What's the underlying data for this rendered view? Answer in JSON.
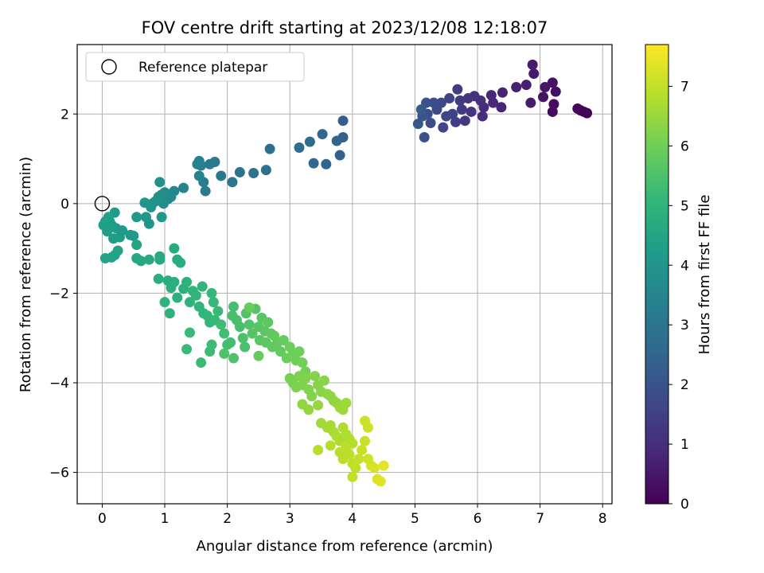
{
  "chart_data": {
    "type": "scatter",
    "title": "FOV centre drift starting at 2023/12/08 12:18:07",
    "xlabel": "Angular distance from reference (arcmin)",
    "ylabel": "Rotation from reference (arcmin)",
    "xlim": [
      -0.4,
      8.15
    ],
    "ylim": [
      -6.7,
      3.55
    ],
    "xticks": [
      0,
      1,
      2,
      3,
      4,
      5,
      6,
      7,
      8
    ],
    "yticks": [
      -6,
      -4,
      -2,
      0,
      2
    ],
    "xtick_labels": [
      "0",
      "1",
      "2",
      "3",
      "4",
      "5",
      "6",
      "7",
      "8"
    ],
    "ytick_labels": [
      "−6",
      "−4",
      "−2",
      "0",
      "2"
    ],
    "grid": true,
    "legend": {
      "placement": "top-left",
      "entries": [
        "Reference platepar"
      ]
    },
    "reference_point": {
      "name": "Reference platepar",
      "x": 0,
      "y": 0,
      "marker": "open-circle"
    },
    "colorbar": {
      "label": "Hours from first FF file",
      "range": [
        0,
        7.7
      ],
      "ticks": [
        0,
        1,
        2,
        3,
        4,
        5,
        6,
        7
      ],
      "tick_labels": [
        "0",
        "1",
        "2",
        "3",
        "4",
        "5",
        "6",
        "7"
      ],
      "colormap": "viridis"
    },
    "colormap_stops": [
      "#440154",
      "#482878",
      "#3e4989",
      "#31688e",
      "#26828e",
      "#1f9e89",
      "#35b779",
      "#6ece58",
      "#b5de2b",
      "#fde725"
    ],
    "points": [
      [
        7.75,
        2.02,
        0.02
      ],
      [
        7.7,
        2.05,
        0.05
      ],
      [
        7.65,
        2.08,
        0.08
      ],
      [
        7.6,
        2.12,
        0.12
      ],
      [
        7.2,
        2.05,
        0.2
      ],
      [
        7.22,
        2.22,
        0.25
      ],
      [
        7.25,
        2.5,
        0.3
      ],
      [
        7.2,
        2.7,
        0.35
      ],
      [
        7.05,
        2.38,
        0.4
      ],
      [
        7.08,
        2.6,
        0.45
      ],
      [
        6.9,
        2.9,
        0.5
      ],
      [
        6.88,
        3.1,
        0.55
      ],
      [
        6.85,
        2.25,
        0.6
      ],
      [
        6.78,
        2.65,
        0.65
      ],
      [
        6.62,
        2.6,
        0.7
      ],
      [
        6.4,
        2.48,
        0.75
      ],
      [
        6.38,
        2.15,
        0.8
      ],
      [
        6.22,
        2.42,
        0.85
      ],
      [
        6.25,
        2.25,
        0.9
      ],
      [
        6.1,
        2.15,
        0.95
      ],
      [
        6.08,
        1.95,
        1.0
      ],
      [
        6.05,
        2.3,
        1.05
      ],
      [
        5.95,
        2.4,
        1.1
      ],
      [
        5.9,
        2.05,
        1.15
      ],
      [
        5.85,
        2.35,
        1.2
      ],
      [
        5.8,
        1.85,
        1.25
      ],
      [
        5.75,
        2.1,
        1.3
      ],
      [
        5.72,
        2.3,
        1.35
      ],
      [
        5.68,
        2.55,
        1.4
      ],
      [
        5.65,
        1.82,
        1.45
      ],
      [
        5.6,
        2.0,
        1.5
      ],
      [
        5.55,
        2.35,
        1.55
      ],
      [
        5.5,
        1.95,
        1.6
      ],
      [
        5.45,
        1.7,
        1.65
      ],
      [
        5.42,
        2.25,
        1.7
      ],
      [
        5.35,
        2.1,
        1.75
      ],
      [
        5.3,
        2.25,
        1.8
      ],
      [
        5.25,
        1.8,
        1.85
      ],
      [
        5.2,
        2.0,
        1.9
      ],
      [
        5.18,
        2.25,
        1.95
      ],
      [
        5.15,
        1.48,
        2.0
      ],
      [
        5.12,
        1.95,
        2.05
      ],
      [
        5.05,
        1.78,
        2.1
      ],
      [
        5.1,
        2.1,
        2.15
      ],
      [
        3.85,
        1.85,
        2.3
      ],
      [
        3.85,
        1.48,
        2.35
      ],
      [
        3.8,
        1.08,
        2.4
      ],
      [
        3.75,
        1.4,
        2.45
      ],
      [
        3.58,
        0.88,
        2.5
      ],
      [
        3.52,
        1.55,
        2.55
      ],
      [
        3.38,
        0.9,
        2.6
      ],
      [
        3.32,
        1.38,
        2.65
      ],
      [
        3.15,
        1.25,
        2.7
      ],
      [
        2.68,
        1.22,
        2.8
      ],
      [
        2.62,
        0.75,
        2.85
      ],
      [
        2.42,
        0.68,
        2.9
      ],
      [
        2.2,
        0.7,
        2.95
      ],
      [
        2.08,
        0.48,
        3.0
      ],
      [
        1.9,
        0.62,
        3.05
      ],
      [
        1.8,
        0.93,
        3.1
      ],
      [
        1.72,
        0.88,
        3.15
      ],
      [
        1.65,
        0.28,
        3.2
      ],
      [
        1.62,
        0.48,
        3.25
      ],
      [
        1.58,
        0.85,
        3.3
      ],
      [
        1.55,
        0.95,
        3.35
      ],
      [
        1.52,
        0.88,
        3.4
      ],
      [
        1.55,
        0.62,
        3.45
      ],
      [
        1.3,
        0.35,
        3.5
      ],
      [
        1.15,
        0.28,
        3.55
      ],
      [
        1.1,
        0.15,
        3.6
      ],
      [
        1.05,
        0.1,
        3.65
      ],
      [
        1.0,
        0.25,
        3.7
      ],
      [
        0.98,
        0.0,
        3.75
      ],
      [
        0.95,
        0.2,
        3.8
      ],
      [
        0.92,
        0.48,
        3.85
      ],
      [
        0.9,
        0.15,
        3.88
      ],
      [
        0.85,
        0.05,
        3.92
      ],
      [
        0.8,
        0.0,
        3.95
      ],
      [
        0.78,
        -0.08,
        3.98
      ],
      [
        0.75,
        -0.45,
        4.0
      ],
      [
        0.7,
        -0.3,
        4.02
      ],
      [
        0.68,
        0.02,
        4.05
      ],
      [
        0.55,
        -0.3,
        4.08
      ],
      [
        0.95,
        -0.3,
        4.1
      ],
      [
        0.5,
        -0.72,
        4.12
      ],
      [
        0.45,
        -0.7,
        4.14
      ],
      [
        0.32,
        -0.6,
        4.16
      ],
      [
        0.28,
        -0.75,
        4.18
      ],
      [
        0.22,
        -0.55,
        4.2
      ],
      [
        0.2,
        -0.2,
        4.22
      ],
      [
        0.18,
        -0.78,
        4.24
      ],
      [
        0.15,
        -0.48,
        4.26
      ],
      [
        0.12,
        -0.4,
        4.28
      ],
      [
        0.1,
        -0.3,
        4.3
      ],
      [
        0.08,
        -0.62,
        4.32
      ],
      [
        0.05,
        -0.4,
        4.34
      ],
      [
        0.02,
        -0.48,
        4.36
      ],
      [
        0.25,
        -1.05,
        4.4
      ],
      [
        0.2,
        -1.15,
        4.42
      ],
      [
        0.15,
        -1.2,
        4.44
      ],
      [
        0.05,
        -1.22,
        4.46
      ],
      [
        0.55,
        -0.92,
        4.5
      ],
      [
        0.55,
        -1.22,
        4.55
      ],
      [
        0.62,
        -1.28,
        4.6
      ],
      [
        0.75,
        -1.25,
        4.62
      ],
      [
        0.92,
        -1.25,
        4.65
      ],
      [
        0.92,
        -1.18,
        4.68
      ],
      [
        1.15,
        -1.0,
        4.7
      ],
      [
        1.2,
        -1.25,
        4.72
      ],
      [
        1.25,
        -1.32,
        4.74
      ],
      [
        0.9,
        -1.68,
        4.78
      ],
      [
        1.05,
        -1.72,
        4.8
      ],
      [
        1.1,
        -1.88,
        4.82
      ],
      [
        1.15,
        -1.75,
        4.84
      ],
      [
        1.2,
        -2.1,
        4.86
      ],
      [
        1.3,
        -1.9,
        4.88
      ],
      [
        1.35,
        -1.75,
        4.9
      ],
      [
        1.4,
        -2.2,
        4.92
      ],
      [
        1.0,
        -2.2,
        4.94
      ],
      [
        1.08,
        -2.45,
        4.96
      ],
      [
        1.45,
        -1.95,
        4.98
      ],
      [
        1.5,
        -2.05,
        5.0
      ],
      [
        1.55,
        -2.3,
        5.02
      ],
      [
        1.6,
        -1.85,
        5.04
      ],
      [
        1.62,
        -2.45,
        5.06
      ],
      [
        1.68,
        -2.5,
        5.08
      ],
      [
        1.72,
        -2.65,
        5.1
      ],
      [
        1.75,
        -2.0,
        5.12
      ],
      [
        1.78,
        -2.2,
        5.14
      ],
      [
        1.8,
        -2.6,
        5.16
      ],
      [
        1.85,
        -2.4,
        5.18
      ],
      [
        1.4,
        -2.88,
        5.2
      ],
      [
        1.35,
        -3.25,
        5.22
      ],
      [
        1.58,
        -3.55,
        5.24
      ],
      [
        1.72,
        -3.3,
        5.26
      ],
      [
        1.75,
        -3.15,
        5.28
      ],
      [
        1.9,
        -2.7,
        5.3
      ],
      [
        1.95,
        -2.9,
        5.32
      ],
      [
        2.0,
        -3.15,
        5.34
      ],
      [
        2.05,
        -3.1,
        5.36
      ],
      [
        2.08,
        -2.5,
        5.38
      ],
      [
        2.1,
        -2.3,
        5.4
      ],
      [
        2.15,
        -2.6,
        5.42
      ],
      [
        2.2,
        -2.75,
        5.44
      ],
      [
        2.25,
        -3.0,
        5.46
      ],
      [
        2.28,
        -3.2,
        5.48
      ],
      [
        1.95,
        -3.35,
        5.5
      ],
      [
        2.1,
        -3.45,
        5.52
      ],
      [
        2.3,
        -2.45,
        5.55
      ],
      [
        2.35,
        -2.7,
        5.57
      ],
      [
        2.4,
        -2.9,
        5.6
      ],
      [
        2.45,
        -2.35,
        5.62
      ],
      [
        2.5,
        -2.75,
        5.64
      ],
      [
        2.52,
        -3.05,
        5.66
      ],
      [
        2.55,
        -2.55,
        5.68
      ],
      [
        2.6,
        -2.85,
        5.7
      ],
      [
        2.62,
        -3.1,
        5.72
      ],
      [
        2.65,
        -2.65,
        5.74
      ],
      [
        2.7,
        -2.9,
        5.76
      ],
      [
        2.72,
        -3.2,
        5.78
      ],
      [
        2.75,
        -2.95,
        5.8
      ],
      [
        2.8,
        -3.1,
        5.82
      ],
      [
        2.85,
        -3.3,
        5.84
      ],
      [
        2.9,
        -3.05,
        5.86
      ],
      [
        2.5,
        -3.4,
        5.88
      ],
      [
        2.35,
        -2.32,
        5.9
      ],
      [
        2.95,
        -3.45,
        5.92
      ],
      [
        3.0,
        -3.2,
        5.94
      ],
      [
        3.05,
        -3.35,
        5.96
      ],
      [
        3.1,
        -3.5,
        5.98
      ],
      [
        3.15,
        -3.3,
        6.0
      ],
      [
        3.2,
        -3.55,
        6.02
      ],
      [
        3.25,
        -3.75,
        6.05
      ],
      [
        3.0,
        -3.9,
        6.1
      ],
      [
        3.05,
        -4.0,
        6.12
      ],
      [
        3.1,
        -4.1,
        6.14
      ],
      [
        3.15,
        -3.85,
        6.16
      ],
      [
        3.2,
        -4.05,
        6.18
      ],
      [
        3.25,
        -3.9,
        6.2
      ],
      [
        3.3,
        -4.15,
        6.22
      ],
      [
        3.35,
        -4.3,
        6.24
      ],
      [
        3.4,
        -3.85,
        6.26
      ],
      [
        3.45,
        -4.05,
        6.28
      ],
      [
        3.5,
        -4.2,
        6.3
      ],
      [
        3.55,
        -3.95,
        6.32
      ],
      [
        3.6,
        -4.25,
        6.34
      ],
      [
        3.65,
        -4.3,
        6.36
      ],
      [
        3.7,
        -4.4,
        6.38
      ],
      [
        3.2,
        -4.48,
        6.4
      ],
      [
        3.3,
        -4.6,
        6.42
      ],
      [
        3.45,
        -4.5,
        6.45
      ],
      [
        3.75,
        -4.45,
        6.48
      ],
      [
        3.8,
        -4.55,
        6.52
      ],
      [
        3.85,
        -4.6,
        6.55
      ],
      [
        3.9,
        -4.45,
        6.58
      ],
      [
        3.5,
        -4.9,
        6.62
      ],
      [
        3.6,
        -5.0,
        6.65
      ],
      [
        3.65,
        -4.95,
        6.68
      ],
      [
        3.7,
        -5.1,
        6.7
      ],
      [
        3.75,
        -5.2,
        6.72
      ],
      [
        3.8,
        -5.3,
        6.74
      ],
      [
        3.85,
        -5.0,
        6.76
      ],
      [
        3.9,
        -5.15,
        6.78
      ],
      [
        3.95,
        -5.25,
        6.8
      ],
      [
        4.0,
        -5.35,
        6.82
      ],
      [
        3.65,
        -5.4,
        6.84
      ],
      [
        3.45,
        -5.5,
        6.86
      ],
      [
        3.8,
        -5.55,
        6.88
      ],
      [
        3.85,
        -5.7,
        6.9
      ],
      [
        3.9,
        -5.45,
        6.92
      ],
      [
        3.95,
        -5.6,
        6.94
      ],
      [
        4.0,
        -5.8,
        6.96
      ],
      [
        4.05,
        -5.9,
        6.98
      ],
      [
        4.0,
        -6.1,
        7.0
      ],
      [
        4.1,
        -5.7,
        7.05
      ],
      [
        4.15,
        -5.5,
        7.08
      ],
      [
        4.2,
        -5.3,
        7.1
      ],
      [
        4.25,
        -5.0,
        7.12
      ],
      [
        4.2,
        -4.85,
        7.14
      ],
      [
        4.25,
        -5.7,
        7.16
      ],
      [
        4.3,
        -5.85,
        7.2
      ],
      [
        4.35,
        -5.9,
        7.25
      ],
      [
        4.4,
        -6.15,
        7.3
      ],
      [
        4.45,
        -6.2,
        7.35
      ],
      [
        4.5,
        -5.85,
        7.4
      ]
    ]
  }
}
